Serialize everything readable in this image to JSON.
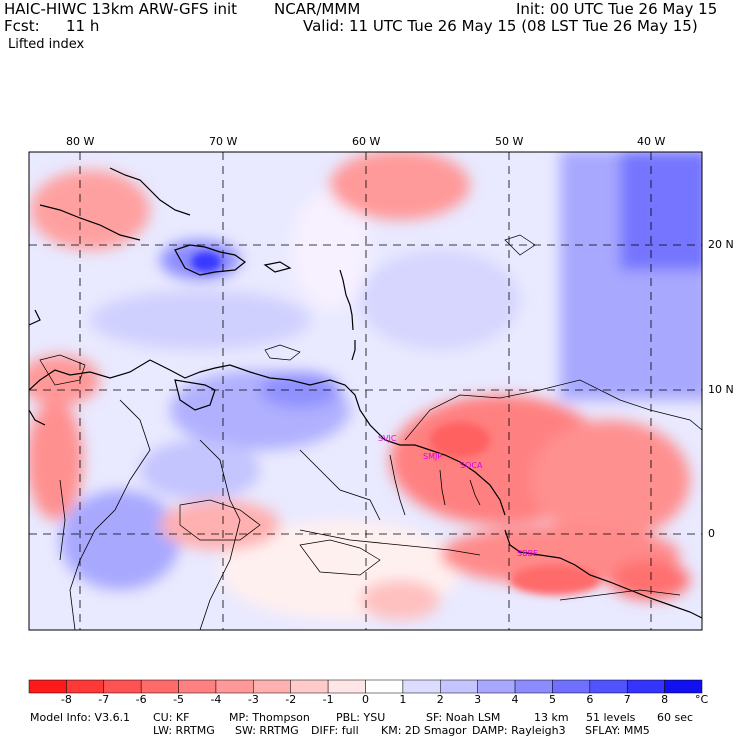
{
  "header": {
    "model": "HAIC-HIWC 13km ARW-GFS init",
    "org": "NCAR/MMM",
    "init": "Init: 00 UTC Tue 26 May 15",
    "fcst_label": "Fcst:",
    "fcst_value": "11 h",
    "valid": "Valid: 11 UTC Tue 26 May 15 (08 LST Tue 26 May 15)",
    "field": "Lifted index"
  },
  "map": {
    "lon_labels": [
      "80 W",
      "70 W",
      "60 W",
      "50 W",
      "40 W"
    ],
    "lat_labels": [
      "20 N",
      "10 N",
      "0"
    ],
    "stations": [
      "SVJC",
      "SMJP",
      "SOCA",
      "SBBE"
    ]
  },
  "colorbar": {
    "labels": [
      "-8",
      "-7",
      "-6",
      "-5",
      "-4",
      "-3",
      "-2",
      "-1",
      "0",
      "1",
      "2",
      "3",
      "4",
      "5",
      "6",
      "7",
      "8"
    ],
    "unit": "°C",
    "colors": [
      "#ff1a1a",
      "#ff3838",
      "#ff5252",
      "#ff6a6a",
      "#ff8080",
      "#ff9898",
      "#ffb0b0",
      "#ffcaca",
      "#ffe6e6",
      "#ffffff",
      "#dcdcff",
      "#c4c4ff",
      "#a8a8ff",
      "#8c8cff",
      "#7070ff",
      "#5252ff",
      "#3434ff",
      "#1010f0"
    ]
  },
  "footer": {
    "line1": [
      "Model Info: V3.6.1",
      "CU: KF",
      "MP: Thompson",
      "PBL: YSU",
      "SF: Noah LSM",
      "13 km",
      "51 levels",
      "60 sec"
    ],
    "line2": [
      "LW: RRTMG",
      "SW: RRTMG",
      "DIFF: full",
      "KM: 2D Smagor",
      "DAMP: Rayleigh3",
      "SFLAY: MM5"
    ]
  }
}
